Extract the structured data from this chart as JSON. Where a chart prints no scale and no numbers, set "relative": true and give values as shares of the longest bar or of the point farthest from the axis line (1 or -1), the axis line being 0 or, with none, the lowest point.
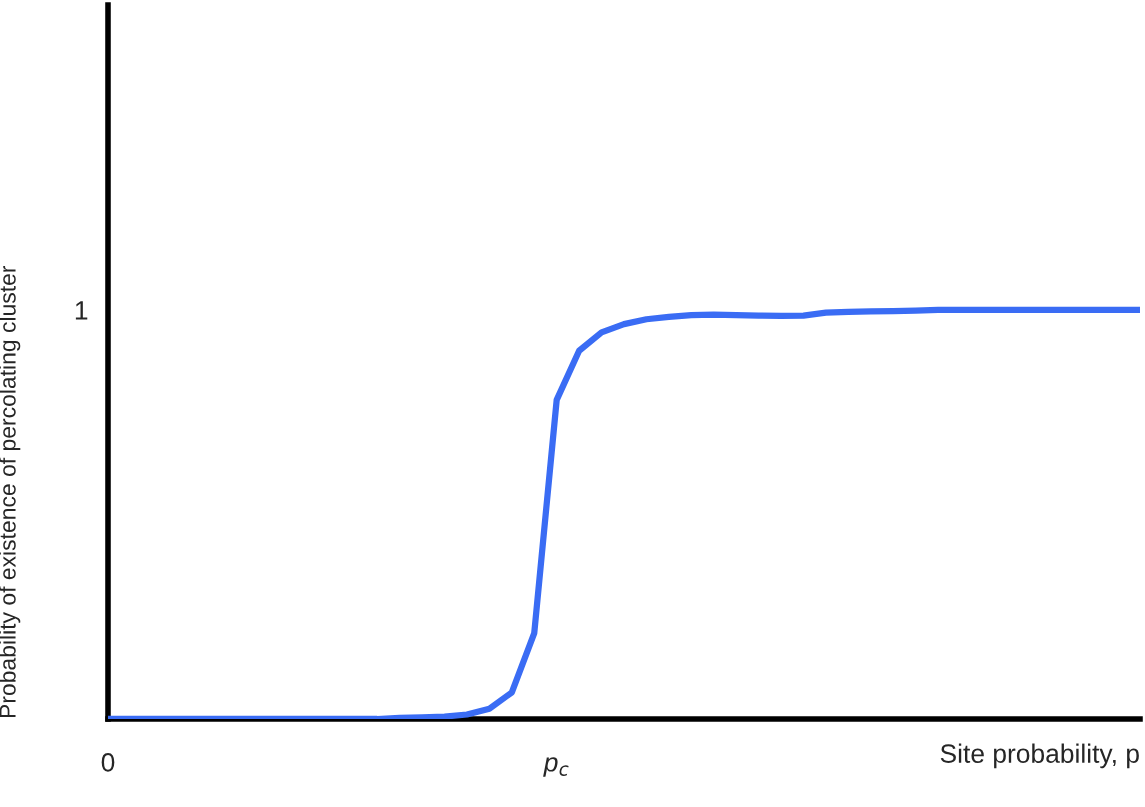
{
  "chart_data": {
    "type": "line",
    "relative": true,
    "xlabel": "Site probability, p",
    "ylabel": "Probability of existence of percolating cluster",
    "categories": [
      "0",
      null,
      null,
      null,
      null,
      null,
      null,
      null,
      null,
      null,
      null,
      null,
      null,
      null,
      null,
      null,
      null,
      null,
      null,
      null,
      "p$_{c}$",
      null,
      null,
      null,
      null,
      null,
      null,
      null,
      null,
      null,
      null,
      null,
      null,
      null,
      null,
      null,
      null,
      null,
      null,
      null,
      null,
      null,
      null,
      null,
      null,
      null,
      null
    ],
    "series": [
      {
        "color": "#3a6cf4",
        "values": [
          0,
          0,
          0,
          0,
          0,
          0,
          0,
          0,
          0,
          0,
          0,
          0,
          0,
          0.003,
          0.004,
          0.006,
          0.011,
          0.025,
          0.065,
          0.21,
          0.78,
          0.9,
          0.945,
          0.965,
          0.977,
          0.983,
          0.987,
          0.988,
          0.987,
          0.986,
          0.985,
          0.986,
          0.993,
          0.995,
          0.996,
          0.997,
          0.998,
          1,
          1,
          1,
          1,
          1,
          1,
          1,
          1,
          1,
          1
        ]
      }
    ],
    "annotations": [
      "1"
    ],
    "grid": false,
    "legend": false,
    "marker": "none",
    "line_style": "solid"
  }
}
